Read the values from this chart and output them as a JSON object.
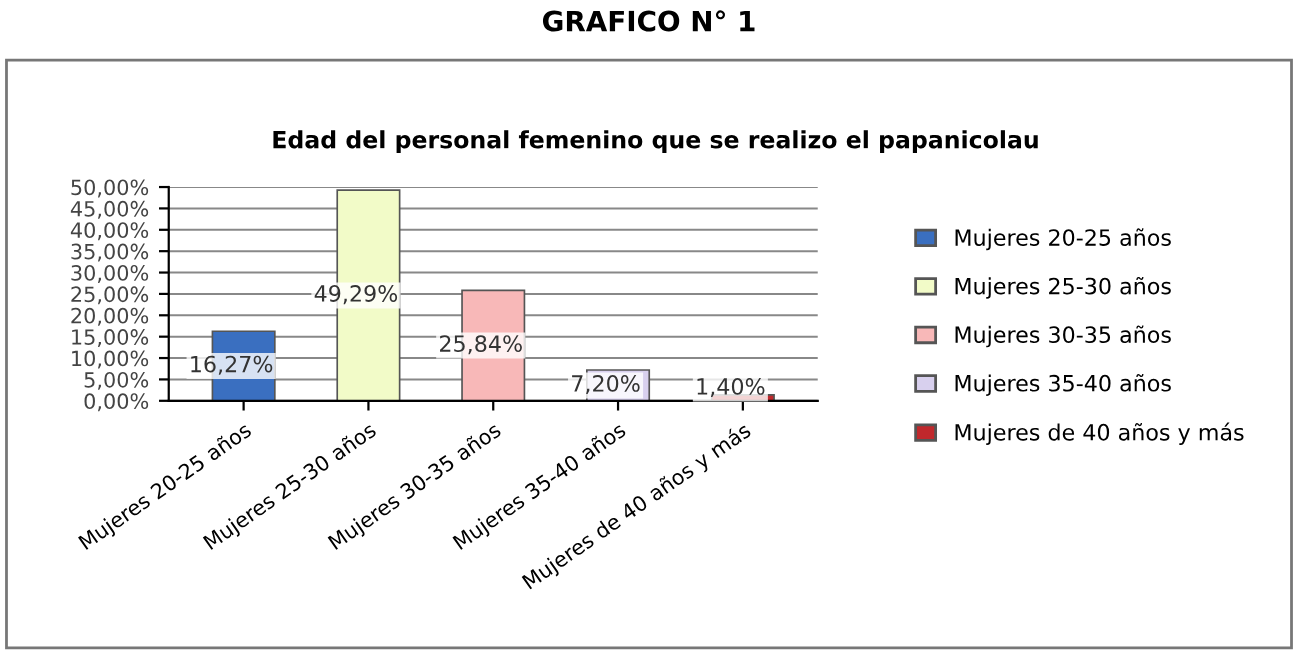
{
  "chart_data": {
    "type": "bar",
    "title": "Edad del personal femenino que se realizo el papanicolau",
    "annotations": [
      "GRAFICO N° 1"
    ],
    "categories": [
      "Mujeres 20-25 años",
      "Mujeres 25-30 años",
      "Mujeres 30-35 años",
      "Mujeres 35-40 años",
      "Mujeres de 40 años y más"
    ],
    "series": [
      {
        "name": "Mujeres 20-25 años",
        "color": "#3a6fc0",
        "values": [
          16.27,
          null,
          null,
          null,
          null
        ],
        "value_labels": [
          "16,27%",
          null,
          null,
          null,
          null
        ]
      },
      {
        "name": "Mujeres 25-30 años",
        "color": "#f2fbc8",
        "values": [
          null,
          49.29,
          null,
          null,
          null
        ],
        "value_labels": [
          null,
          "49,29%",
          null,
          null,
          null
        ]
      },
      {
        "name": "Mujeres 30-35 años",
        "color": "#f8b8b8",
        "values": [
          null,
          null,
          25.84,
          null,
          null
        ],
        "value_labels": [
          null,
          null,
          "25,84%",
          null,
          null
        ]
      },
      {
        "name": "Mujeres 35-40 años",
        "color": "#d8d0ee",
        "values": [
          null,
          null,
          null,
          7.2,
          null
        ],
        "value_labels": [
          null,
          null,
          null,
          "7,20%",
          null
        ]
      },
      {
        "name": "Mujeres de 40 años y más",
        "color": "#c0282c",
        "values": [
          null,
          null,
          null,
          null,
          1.4
        ],
        "value_labels": [
          null,
          null,
          null,
          null,
          "1,40%"
        ]
      }
    ],
    "stacked": true,
    "ylim": [
      0,
      50
    ],
    "yticks": [
      {
        "value": 0,
        "label": "0,00%"
      },
      {
        "value": 5,
        "label": "5,00%"
      },
      {
        "value": 10,
        "label": "10,00%"
      },
      {
        "value": 15,
        "label": "15,00%"
      },
      {
        "value": 20,
        "label": "20,00%"
      },
      {
        "value": 25,
        "label": "25,00%"
      },
      {
        "value": 30,
        "label": "30,00%"
      },
      {
        "value": 35,
        "label": "35,00%"
      },
      {
        "value": 40,
        "label": "40,00%"
      },
      {
        "value": 45,
        "label": "45,00%"
      },
      {
        "value": 50,
        "label": "50,00%"
      }
    ],
    "grid": "y",
    "legend": "right"
  }
}
